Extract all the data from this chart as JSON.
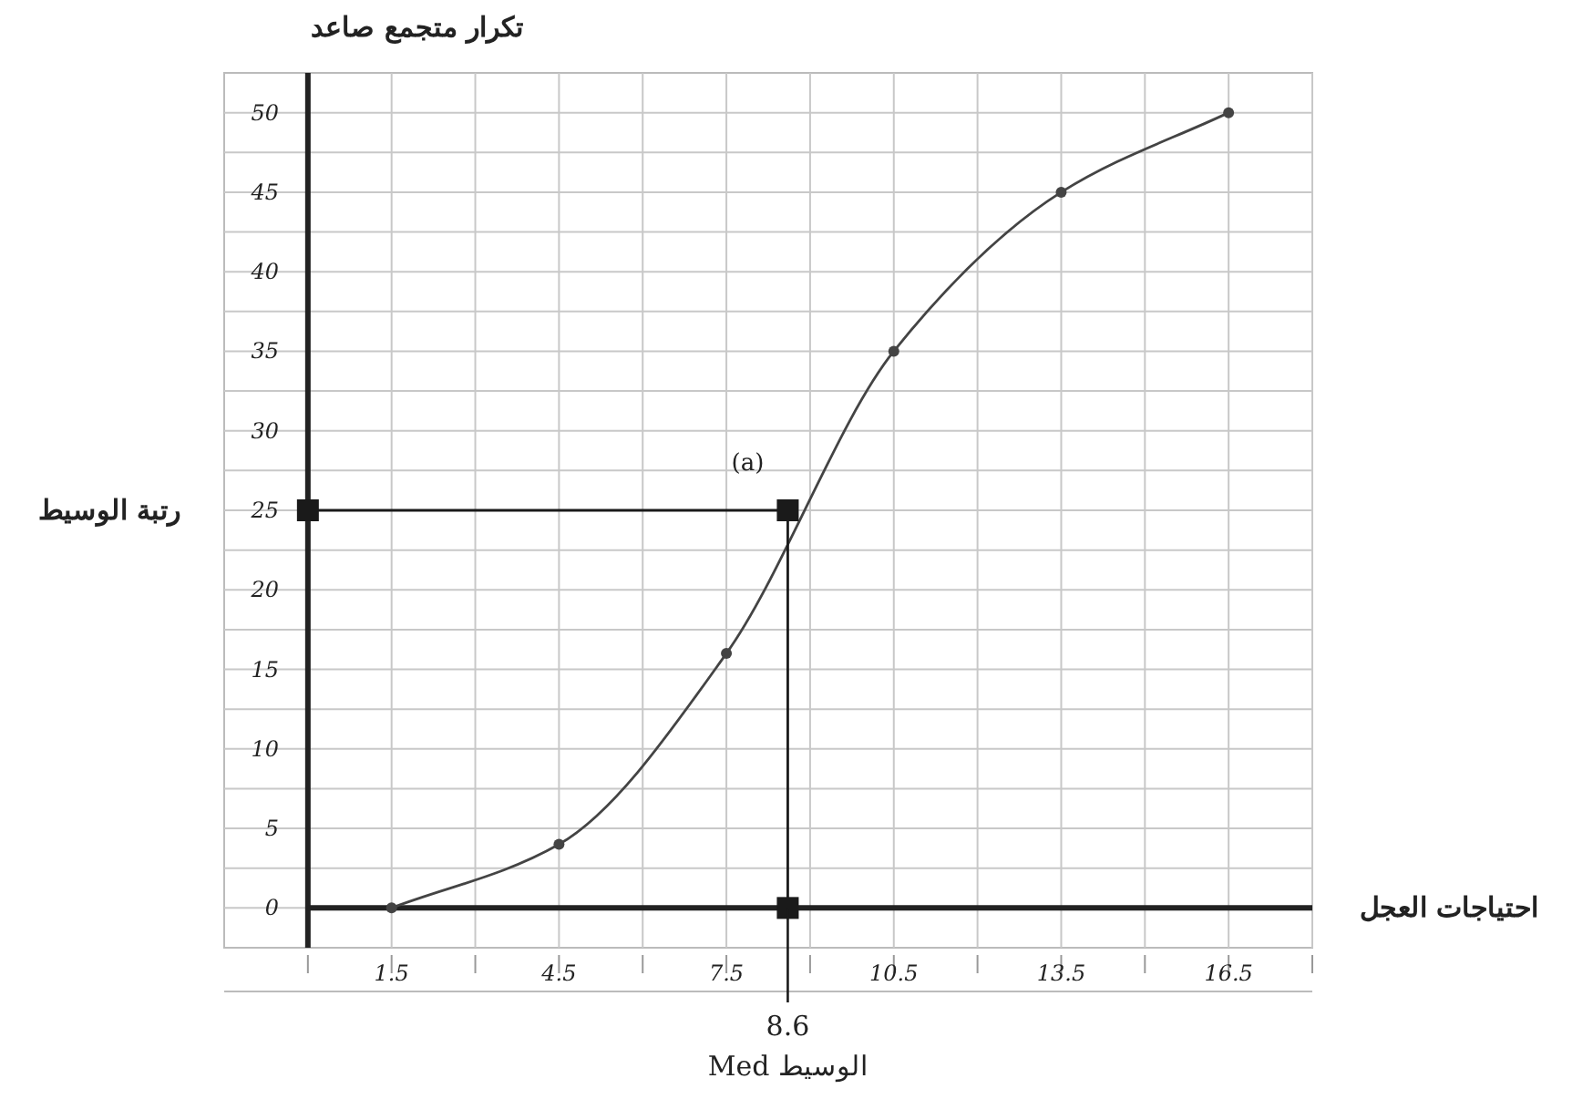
{
  "chart_data": {
    "type": "line",
    "xlabel": "احتياجات العجل",
    "ylabel": "تكرار متجمع صاعد",
    "xlim": [
      -1.5,
      18
    ],
    "ylim": [
      -2.5,
      52.5
    ],
    "xticks": [
      {
        "value": 0,
        "label": null
      },
      1.5,
      {
        "value": 3,
        "label": null
      },
      4.5,
      {
        "value": 6,
        "label": null
      },
      7.5,
      {
        "value": 9,
        "label": null
      },
      10.5,
      {
        "value": 12,
        "label": null
      },
      13.5,
      {
        "value": 15,
        "label": null
      },
      16.5,
      {
        "value": 18,
        "label": null
      }
    ],
    "yticks": [
      0,
      {
        "value": 2.5,
        "label": null
      },
      5,
      {
        "value": 7.5,
        "label": null
      },
      10,
      {
        "value": 12.5,
        "label": null
      },
      15,
      {
        "value": 17.5,
        "label": null
      },
      20,
      {
        "value": 22.5,
        "label": null
      },
      25,
      {
        "value": 27.5,
        "label": null
      },
      30,
      {
        "value": 32.5,
        "label": null
      },
      35,
      {
        "value": 37.5,
        "label": null
      },
      40,
      {
        "value": 42.5,
        "label": null
      },
      45,
      {
        "value": 47.5,
        "label": null
      },
      50
    ],
    "grid": true,
    "marker": "circle",
    "line_style": "solid",
    "series": [
      {
        "color": "#444444",
        "x": [
          1.5,
          4.5,
          7.5,
          10.5,
          13.5,
          16.5
        ],
        "values": [
          0,
          4,
          16,
          35,
          45,
          50
        ]
      },
      {
        "color": "#1a1a1a",
        "x": [
          0,
          8.6,
          8.6
        ],
        "values": [
          25,
          25,
          0
        ],
        "marker": "square"
      }
    ],
    "annotations": [
      "(a)",
      "رتبة الوسيط",
      {
        "text": "8.6",
        "x": 8.6,
        "y": 0
      },
      "الوسيط Med"
    ]
  }
}
